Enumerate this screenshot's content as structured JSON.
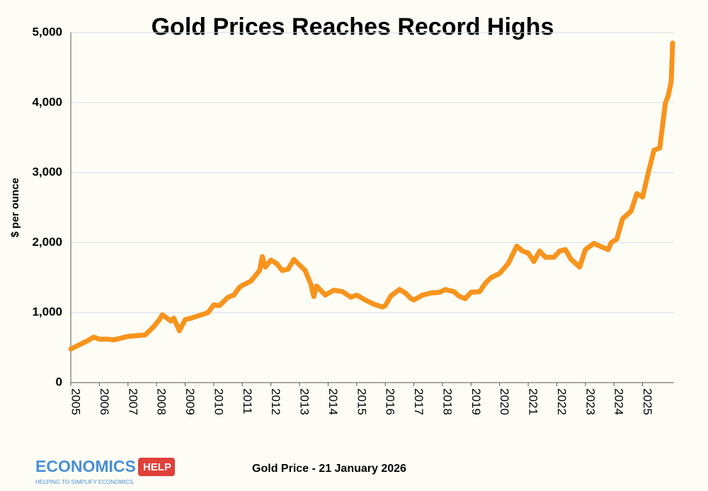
{
  "chart_data": {
    "type": "line",
    "title": "Gold Prices Reaches Record Highs",
    "y_label": "$ per ounce",
    "x": [
      2005.0,
      2005.3,
      2005.6,
      2005.8,
      2006.0,
      2006.3,
      2006.5,
      2006.8,
      2007.0,
      2007.3,
      2007.6,
      2007.9,
      2008.1,
      2008.2,
      2008.5,
      2008.6,
      2008.8,
      2009.0,
      2009.2,
      2009.5,
      2009.8,
      2010.0,
      2010.2,
      2010.5,
      2010.7,
      2010.9,
      2011.0,
      2011.3,
      2011.6,
      2011.7,
      2011.8,
      2012.0,
      2012.2,
      2012.4,
      2012.6,
      2012.8,
      2013.0,
      2013.2,
      2013.4,
      2013.5,
      2013.6,
      2013.9,
      2014.2,
      2014.5,
      2014.8,
      2015.0,
      2015.3,
      2015.6,
      2015.9,
      2016.0,
      2016.2,
      2016.5,
      2016.7,
      2016.9,
      2017.0,
      2017.3,
      2017.6,
      2017.9,
      2018.1,
      2018.4,
      2018.6,
      2018.8,
      2019.0,
      2019.3,
      2019.5,
      2019.7,
      2020.0,
      2020.3,
      2020.6,
      2020.8,
      2021.0,
      2021.2,
      2021.4,
      2021.6,
      2021.9,
      2022.1,
      2022.3,
      2022.5,
      2022.8,
      2023.0,
      2023.3,
      2023.5,
      2023.8,
      2023.9,
      2024.1,
      2024.3,
      2024.6,
      2024.8,
      2025.0,
      2025.2,
      2025.4,
      2025.6,
      2025.8,
      2025.9,
      2026.0,
      2026.05
    ],
    "values": [
      480,
      540,
      600,
      650,
      620,
      620,
      610,
      640,
      660,
      670,
      680,
      800,
      900,
      970,
      880,
      920,
      740,
      900,
      920,
      960,
      1000,
      1110,
      1100,
      1220,
      1250,
      1360,
      1390,
      1450,
      1600,
      1800,
      1650,
      1750,
      1700,
      1600,
      1620,
      1760,
      1680,
      1600,
      1400,
      1230,
      1380,
      1250,
      1320,
      1300,
      1220,
      1250,
      1180,
      1120,
      1080,
      1100,
      1240,
      1330,
      1280,
      1200,
      1180,
      1250,
      1280,
      1290,
      1330,
      1300,
      1230,
      1200,
      1290,
      1300,
      1420,
      1500,
      1560,
      1700,
      1950,
      1880,
      1850,
      1730,
      1880,
      1790,
      1790,
      1880,
      1900,
      1760,
      1650,
      1900,
      1990,
      1950,
      1900,
      2000,
      2050,
      2340,
      2450,
      2700,
      2650,
      3000,
      3320,
      3350,
      4000,
      4100,
      4300,
      4850
    ],
    "color": "#f7941d",
    "xlim": [
      2005,
      2026.1
    ],
    "xticks": [
      2005,
      2006,
      2007,
      2008,
      2009,
      2010,
      2011,
      2012,
      2013,
      2014,
      2015,
      2016,
      2017,
      2018,
      2019,
      2020,
      2021,
      2022,
      2023,
      2024,
      2025
    ],
    "ylim": [
      0,
      5000
    ],
    "yticks": [
      0,
      {
        "value": 1000,
        "label": "1,000"
      },
      {
        "value": 2000,
        "label": "2,000"
      },
      {
        "value": 3000,
        "label": "3,000"
      },
      {
        "value": 4000,
        "label": "4,000"
      },
      {
        "value": 5000,
        "label": "5,000"
      }
    ],
    "grid": true
  },
  "footer": {
    "logo": "ECONOMICS",
    "logo_tag": "HELP",
    "tagline": "HELPING TO SIMPLIFY ECONOMICS",
    "caption": "Gold Price - 21 January 2026"
  }
}
